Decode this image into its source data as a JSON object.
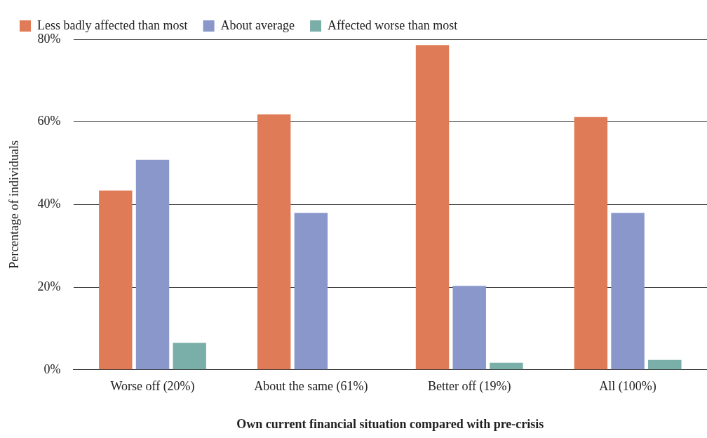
{
  "chart_data": {
    "type": "bar",
    "xlabel": "Own current financial situation compared with pre-crisis",
    "ylabel": "Percentage of individuals",
    "categories": [
      "Worse off (20%)",
      "About the same (61%)",
      "Better off (19%)",
      "All (100%)"
    ],
    "series": [
      {
        "name": "Less badly affected than most",
        "color": "#e07b57",
        "values": [
          43.4,
          61.8,
          78.6,
          61.2
        ]
      },
      {
        "name": "About average",
        "color": "#8a97cb",
        "values": [
          50.8,
          38.0,
          20.3,
          38.0
        ]
      },
      {
        "name": "Affected worse than most",
        "color": "#7aaea8",
        "values": [
          6.5,
          0,
          1.7,
          2.4
        ]
      }
    ],
    "ylim": [
      0,
      80
    ],
    "yticks": [
      {
        "value": 0,
        "label": "0%"
      },
      {
        "value": 20,
        "label": "20%"
      },
      {
        "value": 40,
        "label": "40%"
      },
      {
        "value": 60,
        "label": "60%"
      },
      {
        "value": 80,
        "label": "80%"
      }
    ],
    "grid": "y",
    "legend": "top"
  }
}
